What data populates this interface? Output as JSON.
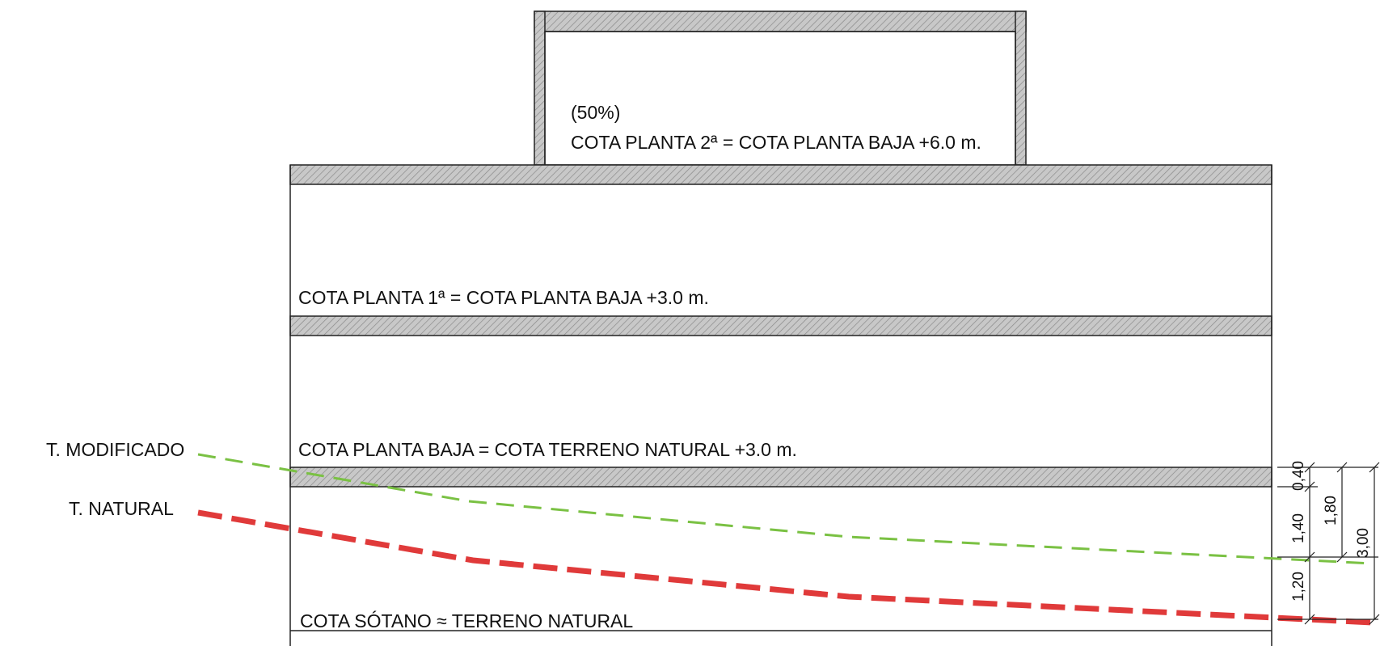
{
  "section": {
    "floor2_percent": "(50%)",
    "floor2_label": "COTA PLANTA 2ª = COTA PLANTA BAJA +6.0 m.",
    "floor1_label": "COTA PLANTA 1ª = COTA PLANTA BAJA +3.0 m.",
    "ground_floor_label": "COTA PLANTA BAJA = COTA TERRENO NATURAL +3.0 m.",
    "basement_label": "COTA SÓTANO ≈ TERRENO NATURAL"
  },
  "terrain": {
    "modified_label": "T. MODIFICADO",
    "natural_label": "T. NATURAL",
    "modified_color": "#7ac143",
    "natural_color": "#e03a3a"
  },
  "dimensions": {
    "d040": "0,40",
    "d140": "1,40",
    "d120": "1,20",
    "d180": "1,80",
    "d300": "3,00"
  }
}
